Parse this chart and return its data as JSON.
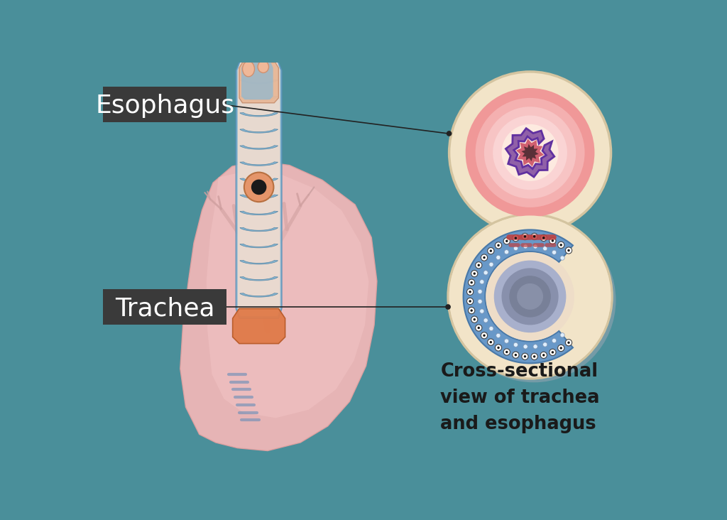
{
  "background_color": "#4a8f9a",
  "fig_width": 10.24,
  "fig_height": 7.32,
  "esophagus_label": "Esophagus",
  "trachea_label": "Trachea",
  "cross_section_label": "Cross-sectional\nview of trachea\nand esophagus",
  "label_bg_color": "#3a3a3a",
  "label_text_color": "white",
  "cross_text_color": "#1a1a1a"
}
